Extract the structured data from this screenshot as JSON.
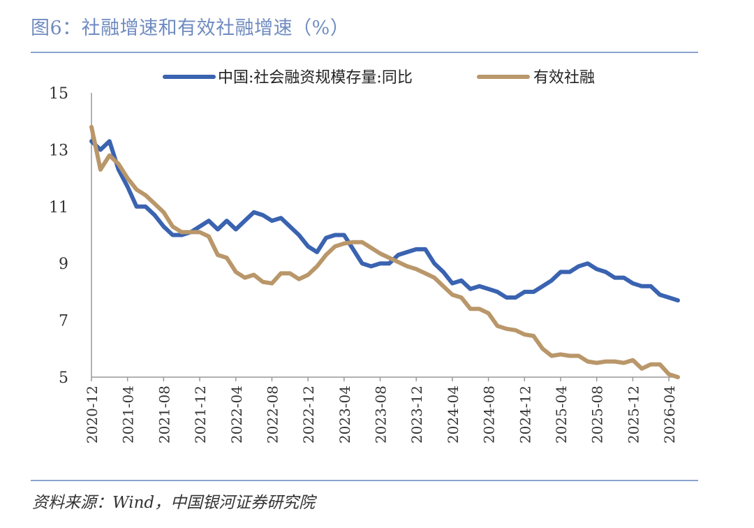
{
  "header": {
    "title": "图6：社融增速和有效社融增速（%）"
  },
  "footer": {
    "source": "资料来源：Wind，中国银河证券研究院"
  },
  "colors": {
    "series1": "#3a63b0",
    "series2": "#b9976a",
    "title": "#6f8bc0",
    "rule": "#8aa3d0"
  },
  "chart_data": {
    "type": "line",
    "title": "",
    "xlabel": "",
    "ylabel": "",
    "ylim": [
      5,
      15
    ],
    "yticks": [
      5,
      7,
      9,
      11,
      13,
      15
    ],
    "grid": false,
    "legend_position": "top",
    "x": [
      "2020-12",
      "2021-01",
      "2021-02",
      "2021-03",
      "2021-04",
      "2021-05",
      "2021-06",
      "2021-07",
      "2021-08",
      "2021-09",
      "2021-10",
      "2021-11",
      "2021-12",
      "2022-01",
      "2022-02",
      "2022-03",
      "2022-04",
      "2022-05",
      "2022-06",
      "2022-07",
      "2022-08",
      "2022-09",
      "2022-10",
      "2022-11",
      "2022-12",
      "2023-01",
      "2023-02",
      "2023-03",
      "2023-04",
      "2023-05",
      "2023-06",
      "2023-07",
      "2023-08",
      "2023-09",
      "2023-10",
      "2023-11",
      "2023-12",
      "2024-01",
      "2024-02",
      "2024-03",
      "2024-04",
      "2024-05",
      "2024-06",
      "2024-07",
      "2024-08",
      "2024-09",
      "2024-10",
      "2024-11",
      "2024-12",
      "2025-01",
      "2025-02",
      "2025-03",
      "2025-04",
      "2025-05",
      "2025-06",
      "2025-07",
      "2025-08",
      "2025-09",
      "2025-10",
      "2025-11",
      "2025-12",
      "2026-01",
      "2026-02",
      "2026-03",
      "2026-04",
      "2026-05"
    ],
    "xticks": [
      "2020-12",
      "2021-04",
      "2021-08",
      "2021-12",
      "2022-04",
      "2022-08",
      "2022-12",
      "2023-04",
      "2023-08",
      "2023-12",
      "2024-04",
      "2024-08",
      "2024-12",
      "2025-04",
      "2025-08",
      "2025-12",
      "2026-04"
    ],
    "series": [
      {
        "name": "中国:社会融资规模存量:同比",
        "values": [
          13.3,
          13.0,
          13.3,
          12.3,
          11.7,
          11.0,
          11.0,
          10.7,
          10.3,
          10.0,
          10.0,
          10.1,
          10.3,
          10.5,
          10.2,
          10.5,
          10.2,
          10.5,
          10.8,
          10.7,
          10.5,
          10.6,
          10.3,
          10.0,
          9.6,
          9.4,
          9.9,
          10.0,
          10.0,
          9.5,
          9.0,
          8.9,
          9.0,
          9.0,
          9.3,
          9.4,
          9.5,
          9.5,
          9.0,
          8.7,
          8.3,
          8.4,
          8.1,
          8.2,
          8.1,
          8.0,
          7.8,
          7.8,
          8.0,
          8.0,
          8.2,
          8.4,
          8.7,
          8.7,
          8.9,
          9.0,
          8.8,
          8.7,
          8.5,
          8.5,
          8.3,
          8.2,
          8.2,
          7.9,
          7.8,
          7.7
        ]
      },
      {
        "name": "有效社融",
        "values": [
          13.8,
          12.3,
          12.8,
          12.5,
          12.0,
          11.6,
          11.4,
          11.1,
          10.8,
          10.3,
          10.1,
          10.1,
          10.1,
          9.95,
          9.3,
          9.2,
          8.7,
          8.5,
          8.6,
          8.35,
          8.3,
          8.65,
          8.65,
          8.45,
          8.6,
          8.9,
          9.3,
          9.6,
          9.7,
          9.75,
          9.75,
          9.55,
          9.35,
          9.2,
          9.05,
          8.9,
          8.8,
          8.65,
          8.5,
          8.2,
          7.9,
          7.8,
          7.4,
          7.4,
          7.25,
          6.8,
          6.7,
          6.65,
          6.5,
          6.45,
          6.0,
          5.75,
          5.8,
          5.75,
          5.75,
          5.55,
          5.5,
          5.55,
          5.55,
          5.5,
          5.6,
          5.3,
          5.45,
          5.45,
          5.1,
          5.0
        ]
      }
    ]
  }
}
